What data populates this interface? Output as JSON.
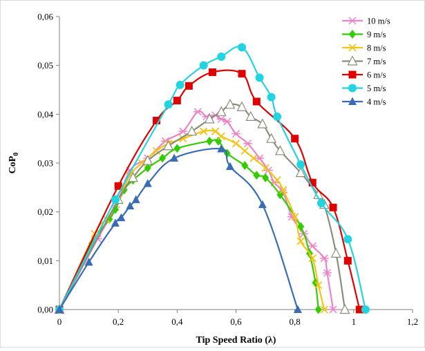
{
  "chart_data": {
    "type": "line",
    "title": "",
    "xlabel": "Tip Speed Ratio (λ)",
    "ylabel": "CoP",
    "ylabel_subscript": "0",
    "xlim": [
      0,
      1.2
    ],
    "ylim": [
      0,
      0.06
    ],
    "x_ticks": [
      {
        "value": 0,
        "label": "0"
      },
      {
        "value": 0.2,
        "label": "0,2"
      },
      {
        "value": 0.4,
        "label": "0,4"
      },
      {
        "value": 0.6,
        "label": "0,6"
      },
      {
        "value": 0.8,
        "label": "0,8"
      },
      {
        "value": 1.0,
        "label": "1"
      },
      {
        "value": 1.2,
        "label": "1,2"
      }
    ],
    "y_ticks": [
      {
        "value": 0,
        "label": "0,00"
      },
      {
        "value": 0.01,
        "label": "0,01"
      },
      {
        "value": 0.02,
        "label": "0,02"
      },
      {
        "value": 0.03,
        "label": "0,03"
      },
      {
        "value": 0.04,
        "label": "0,04"
      },
      {
        "value": 0.05,
        "label": "0,05"
      },
      {
        "value": 0.06,
        "label": "0,06"
      }
    ],
    "grid": false,
    "legend_position": "top-right",
    "series": [
      {
        "name": "10 m/s",
        "color": "#ee82c8",
        "marker": "asterisk",
        "points": [
          [
            0,
            0
          ],
          [
            0.13,
            0.0145
          ],
          [
            0.19,
            0.021
          ],
          [
            0.24,
            0.0285
          ],
          [
            0.3,
            0.031
          ],
          [
            0.36,
            0.0345
          ],
          [
            0.42,
            0.0365
          ],
          [
            0.47,
            0.0405
          ],
          [
            0.5,
            0.0395
          ],
          [
            0.53,
            0.0398
          ],
          [
            0.55,
            0.039
          ],
          [
            0.57,
            0.0385
          ],
          [
            0.6,
            0.036
          ],
          [
            0.64,
            0.034
          ],
          [
            0.68,
            0.031
          ],
          [
            0.71,
            0.0285
          ],
          [
            0.73,
            0.026
          ],
          [
            0.76,
            0.024
          ],
          [
            0.79,
            0.019
          ],
          [
            0.83,
            0.0155
          ],
          [
            0.86,
            0.013
          ],
          [
            0.9,
            0.0105
          ],
          [
            0.91,
            0.0075
          ],
          [
            0.93,
            0
          ]
        ]
      },
      {
        "name": "9 m/s",
        "color": "#33cc00",
        "marker": "diamond",
        "points": [
          [
            0,
            0
          ],
          [
            0.11,
            0.0135
          ],
          [
            0.17,
            0.0185
          ],
          [
            0.19,
            0.0205
          ],
          [
            0.22,
            0.0245
          ],
          [
            0.25,
            0.0265
          ],
          [
            0.3,
            0.029
          ],
          [
            0.35,
            0.031
          ],
          [
            0.4,
            0.033
          ],
          [
            0.51,
            0.0345
          ],
          [
            0.54,
            0.0345
          ],
          [
            0.57,
            0.032
          ],
          [
            0.63,
            0.0295
          ],
          [
            0.67,
            0.0275
          ],
          [
            0.7,
            0.027
          ],
          [
            0.75,
            0.0235
          ],
          [
            0.82,
            0.017
          ],
          [
            0.85,
            0.0115
          ],
          [
            0.87,
            0.0055
          ],
          [
            0.88,
            0
          ]
        ]
      },
      {
        "name": "8 m/s",
        "color": "#f2c414",
        "marker": "x",
        "points": [
          [
            0,
            0
          ],
          [
            0.12,
            0.0155
          ],
          [
            0.16,
            0.0185
          ],
          [
            0.2,
            0.0225
          ],
          [
            0.24,
            0.0275
          ],
          [
            0.28,
            0.03
          ],
          [
            0.33,
            0.0325
          ],
          [
            0.37,
            0.034
          ],
          [
            0.42,
            0.035
          ],
          [
            0.49,
            0.0365
          ],
          [
            0.53,
            0.0365
          ],
          [
            0.55,
            0.0355
          ],
          [
            0.6,
            0.034
          ],
          [
            0.63,
            0.0325
          ],
          [
            0.66,
            0.031
          ],
          [
            0.7,
            0.029
          ],
          [
            0.74,
            0.0265
          ],
          [
            0.76,
            0.0245
          ],
          [
            0.8,
            0.019
          ],
          [
            0.82,
            0.014
          ],
          [
            0.86,
            0.0105
          ],
          [
            0.88,
            0.005
          ],
          [
            0.9,
            0
          ]
        ]
      },
      {
        "name": "7 m/s",
        "color": "#8c8c7a",
        "marker": "triangle-open",
        "points": [
          [
            0,
            0
          ],
          [
            0.2,
            0.0225
          ],
          [
            0.25,
            0.027
          ],
          [
            0.3,
            0.0305
          ],
          [
            0.37,
            0.0335
          ],
          [
            0.45,
            0.0365
          ],
          [
            0.51,
            0.039
          ],
          [
            0.55,
            0.0405
          ],
          [
            0.58,
            0.042
          ],
          [
            0.62,
            0.0415
          ],
          [
            0.65,
            0.0395
          ],
          [
            0.69,
            0.038
          ],
          [
            0.72,
            0.035
          ],
          [
            0.75,
            0.0325
          ],
          [
            0.82,
            0.028
          ],
          [
            0.88,
            0.0235
          ],
          [
            0.9,
            0.0215
          ],
          [
            0.94,
            0.0115
          ],
          [
            0.97,
            0
          ]
        ]
      },
      {
        "name": "6 m/s",
        "color": "#e00000",
        "marker": "square",
        "points": [
          [
            0,
            0
          ],
          [
            0.2,
            0.0253
          ],
          [
            0.33,
            0.0387
          ],
          [
            0.4,
            0.0428
          ],
          [
            0.44,
            0.0458
          ],
          [
            0.52,
            0.0486
          ],
          [
            0.62,
            0.0483
          ],
          [
            0.67,
            0.0426
          ],
          [
            0.8,
            0.035
          ],
          [
            0.86,
            0.026
          ],
          [
            0.93,
            0.0209
          ],
          [
            0.98,
            0.01
          ],
          [
            1.02,
            0
          ]
        ]
      },
      {
        "name": "5 m/s",
        "color": "#22d3e0",
        "marker": "circle",
        "points": [
          [
            0,
            0
          ],
          [
            0.19,
            0.0225
          ],
          [
            0.37,
            0.042
          ],
          [
            0.41,
            0.046
          ],
          [
            0.49,
            0.05
          ],
          [
            0.55,
            0.0518
          ],
          [
            0.62,
            0.0537
          ],
          [
            0.68,
            0.0475
          ],
          [
            0.72,
            0.0435
          ],
          [
            0.74,
            0.0395
          ],
          [
            0.82,
            0.0297
          ],
          [
            0.89,
            0.0218
          ],
          [
            0.98,
            0.0144
          ],
          [
            1.04,
            0
          ]
        ]
      },
      {
        "name": "4 m/s",
        "color": "#3a6cb5",
        "marker": "triangle",
        "points": [
          [
            0,
            0
          ],
          [
            0.1,
            0.0097
          ],
          [
            0.19,
            0.0177
          ],
          [
            0.21,
            0.0188
          ],
          [
            0.24,
            0.0212
          ],
          [
            0.26,
            0.0225
          ],
          [
            0.3,
            0.0258
          ],
          [
            0.39,
            0.031
          ],
          [
            0.55,
            0.0329
          ],
          [
            0.58,
            0.0293
          ],
          [
            0.69,
            0.0215
          ],
          [
            0.81,
            0
          ]
        ]
      }
    ]
  }
}
